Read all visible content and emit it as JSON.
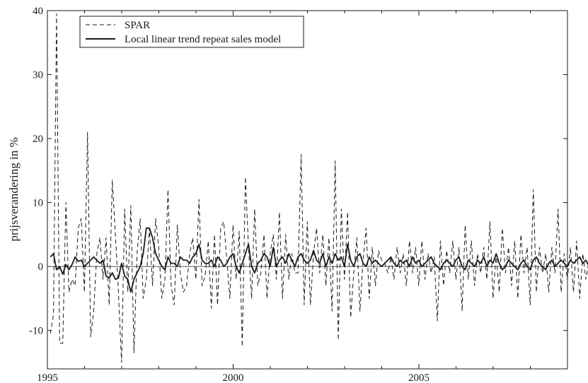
{
  "chart_data": {
    "type": "line",
    "title": "",
    "xlabel": "",
    "ylabel": "prijsverandering in %",
    "xlim": [
      1995,
      2009
    ],
    "ylim": [
      -16,
      40
    ],
    "x_ticks": [
      1995,
      2000,
      2005
    ],
    "y_ticks": [
      -10,
      0,
      10,
      20,
      30,
      40
    ],
    "y_tick_labels": [
      "-10",
      "0",
      "10",
      "20",
      "30",
      "40"
    ],
    "x_tick_labels": [
      "1995",
      "2000",
      "2005"
    ],
    "reference_line_y": 0,
    "legend_position": "top-left",
    "grid": false,
    "series": [
      {
        "name": "SPAR",
        "style": "dashed",
        "color": "#1a1a1a",
        "x_start": 1995.08,
        "x_step": 0.08333,
        "values": [
          -10.5,
          -7.5,
          39.5,
          -12,
          -12,
          10,
          -4,
          -2,
          -3,
          6,
          7.5,
          -4,
          21,
          -11,
          -7,
          2,
          4.5,
          -2,
          4.5,
          -6,
          13.5,
          5,
          -4,
          -15,
          9,
          -4,
          9.5,
          -13.5,
          2,
          7.5,
          -5,
          -2,
          6,
          -3,
          7.5,
          3,
          -5,
          -2,
          12,
          -3,
          -6,
          6.5,
          -1,
          -4,
          -3,
          2,
          4.5,
          -2,
          10.5,
          -3,
          -1.5,
          4,
          -6.5,
          5,
          -6,
          6,
          7,
          1,
          -5,
          6.5,
          -2,
          5.5,
          -12.5,
          14,
          3,
          -5,
          9,
          -3,
          -1,
          5,
          -5,
          2,
          5,
          -2,
          8.5,
          -5,
          5,
          -2,
          2,
          -1,
          -1,
          17.5,
          -6,
          7,
          -6,
          2,
          6,
          -1,
          5,
          -3,
          4.5,
          -7,
          16.5,
          -11.5,
          9,
          -2,
          8.5,
          -8,
          -1,
          4.5,
          -7,
          1,
          6,
          -5,
          3,
          -3,
          2.5,
          1,
          0.5,
          -1,
          1.5,
          -2,
          3,
          -1,
          2,
          -3,
          4,
          -1,
          3,
          -3,
          4,
          -2,
          2,
          -1,
          1.5,
          -8.5,
          4,
          -3,
          2.5,
          -1,
          4,
          -2,
          3,
          -7,
          6.5,
          -2,
          4,
          -3,
          2,
          -1,
          3,
          -2,
          7,
          -5,
          2,
          -4,
          6,
          -1,
          3,
          -3,
          4,
          -5,
          5,
          -1,
          3,
          -6,
          12,
          -4,
          3,
          -1,
          2,
          -4,
          3,
          -1,
          9,
          -4,
          2,
          -2,
          3,
          -4,
          4,
          -5,
          2,
          -2,
          1,
          1.5
        ]
      },
      {
        "name": "Local linear trend repeat sales model",
        "style": "solid",
        "color": "#1a1a1a",
        "x_start": 1995.08,
        "x_step": 0.08333,
        "values": [
          1.5,
          2,
          -0.5,
          0,
          -1.2,
          0.3,
          -0.5,
          0.3,
          1.5,
          0.8,
          1,
          0,
          0.5,
          1,
          1.5,
          1,
          0.5,
          1,
          -1.5,
          -1.8,
          -1,
          -2,
          -1.8,
          0.5,
          -1.5,
          -2,
          -4,
          -2,
          -1,
          0,
          2,
          6,
          6,
          4.5,
          2,
          1,
          0,
          -0.5,
          1.5,
          0.5,
          0.5,
          0,
          1.5,
          1,
          1,
          0.5,
          1.5,
          2,
          3.5,
          1,
          0.5,
          0.5,
          1,
          0,
          1.5,
          1,
          0,
          0.5,
          1.5,
          2,
          0,
          -1,
          0.5,
          2,
          3.5,
          0,
          -1,
          0.5,
          1,
          2,
          1.5,
          0,
          3,
          0,
          1,
          1.5,
          0.5,
          2,
          1,
          0,
          1.5,
          2,
          1,
          0.5,
          1,
          2.5,
          1,
          0.5,
          2,
          0,
          1.5,
          0.5,
          2,
          1,
          1.5,
          0,
          3.5,
          1,
          0,
          1.5,
          2,
          0.5,
          0,
          1.5,
          0.5,
          1,
          0.5,
          0,
          0.5,
          1,
          1.5,
          0.5,
          0,
          1,
          0.5,
          1,
          0,
          1.5,
          0.5,
          1,
          0,
          0.5,
          1,
          1.5,
          0.5,
          0,
          -0.5,
          0.5,
          1,
          0.5,
          0,
          1,
          1.5,
          0,
          -0.5,
          1,
          0.5,
          0,
          1,
          0.5,
          1.5,
          0,
          1,
          0.5,
          2,
          0.5,
          -0.5,
          0,
          1,
          0.5,
          0,
          -0.5,
          0.5,
          1,
          0,
          -0.5,
          1,
          1.5,
          0.5,
          0,
          -0.5,
          0.5,
          1,
          0,
          0.5,
          1,
          0.5,
          0,
          1,
          0.5,
          1,
          1.5,
          0.5,
          1,
          0,
          -1,
          -1.5,
          0,
          1.5
        ]
      }
    ]
  }
}
